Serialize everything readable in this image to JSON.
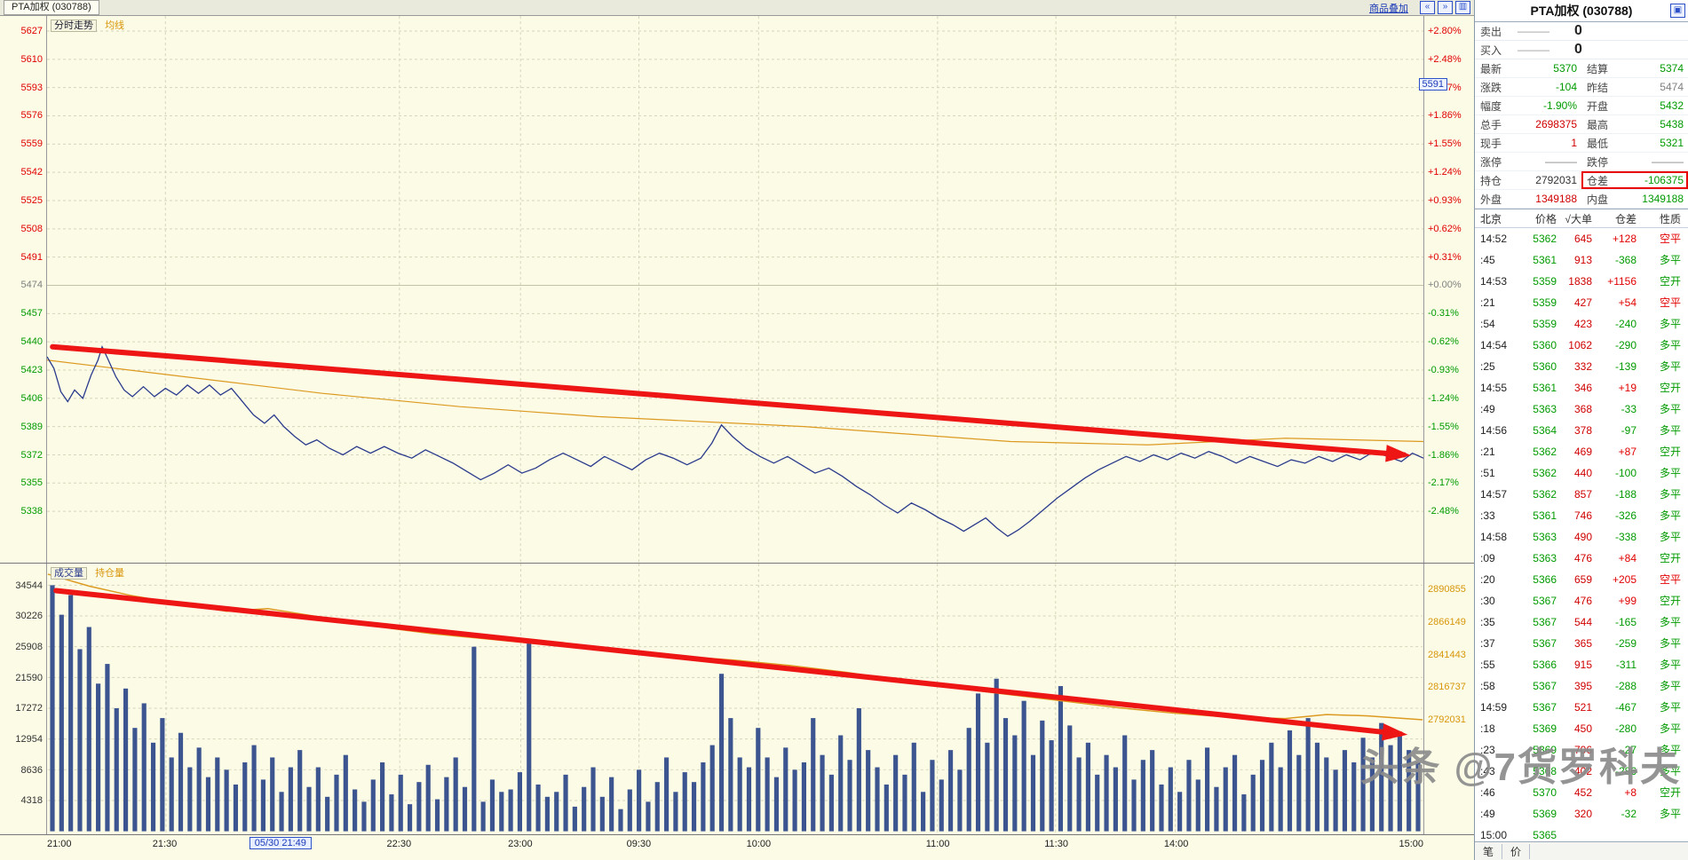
{
  "topbar": {
    "title": "PTA加权 (030788)",
    "overlay_link": "商品叠加"
  },
  "icons": {
    "zoom_out": "«",
    "zoom_in": "»",
    "layout": "▥",
    "panel_menu": "▣"
  },
  "main_chart": {
    "label_trend": "分时走势",
    "label_avg": "均线",
    "marker": "5591",
    "price_axis": [
      "5627",
      "5610",
      "5593",
      "5576",
      "5559",
      "5542",
      "5525",
      "5508",
      "5491",
      "5474",
      "5457",
      "5440",
      "5423",
      "5406",
      "5389",
      "5372",
      "5355",
      "5338"
    ],
    "pct_axis": [
      "+2.80%",
      "+2.48%",
      "+2.17%",
      "+1.86%",
      "+1.55%",
      "+1.24%",
      "+0.93%",
      "+0.62%",
      "+0.31%",
      "+0.00%",
      "-0.31%",
      "-0.62%",
      "-0.93%",
      "-1.24%",
      "-1.55%",
      "-1.86%",
      "-2.17%",
      "-2.48%"
    ]
  },
  "volume_chart": {
    "label_vol": "成交量",
    "label_oi": "持仓量",
    "vol_axis": [
      "34544",
      "30226",
      "25908",
      "21590",
      "17272",
      "12954",
      "8636",
      "4318"
    ],
    "oi_axis": [
      "2890855",
      "2866149",
      "2841443",
      "2816737",
      "2792031"
    ]
  },
  "time_axis": {
    "cursor": "05/30 21:49",
    "cursor_f": 0.17,
    "labels": [
      {
        "t": "21:00",
        "f": 0,
        "e": "left"
      },
      {
        "t": "21:30",
        "f": 0.086
      },
      {
        "t": "22:30",
        "f": 0.256
      },
      {
        "t": "23:00",
        "f": 0.344
      },
      {
        "t": "09:30",
        "f": 0.43
      },
      {
        "t": "10:00",
        "f": 0.517
      },
      {
        "t": "11:00",
        "f": 0.647
      },
      {
        "t": "11:30",
        "f": 0.733
      },
      {
        "t": "14:00",
        "f": 0.82
      },
      {
        "t": "15:00",
        "f": 1,
        "e": "right"
      }
    ]
  },
  "quote": {
    "title": "PTA加权 (030788)",
    "sell_label": "卖出",
    "buy_label": "买入",
    "dash": "———",
    "sell_vol": "0",
    "buy_vol": "0",
    "rows": [
      {
        "l1": "最新",
        "v1": "5370",
        "c1": "dn",
        "l2": "结算",
        "v2": "5374",
        "c2": "dn"
      },
      {
        "l1": "涨跌",
        "v1": "-104",
        "c1": "dn",
        "l2": "昨结",
        "v2": "5474",
        "c2": "gy"
      },
      {
        "l1": "幅度",
        "v1": "-1.90%",
        "c1": "dn",
        "l2": "开盘",
        "v2": "5432",
        "c2": "dn"
      },
      {
        "l1": "总手",
        "v1": "2698375",
        "c1": "rd",
        "l2": "最高",
        "v2": "5438",
        "c2": "dn"
      },
      {
        "l1": "现手",
        "v1": "1",
        "c1": "rd",
        "l2": "最低",
        "v2": "5321",
        "c2": "dn"
      },
      {
        "l1": "涨停",
        "v1": "———",
        "c1": "gy",
        "l2": "跌停",
        "v2": "———",
        "c2": "gy"
      },
      {
        "l1": "持仓",
        "v1": "2792031",
        "c1": "bk",
        "l2": "仓差",
        "v2": "-106375",
        "c2": "dn",
        "box2": true
      },
      {
        "l1": "外盘",
        "v1": "1349188",
        "c1": "rd",
        "l2": "内盘",
        "v2": "1349188",
        "c2": "dn"
      }
    ]
  },
  "ticks": {
    "headers": [
      "北京",
      "价格",
      "√大单",
      "仓差",
      "性质"
    ],
    "rows": [
      [
        "14:52",
        "5362",
        "645",
        "+128",
        "空平"
      ],
      [
        ":45",
        "5361",
        "913",
        "-368",
        "多平"
      ],
      [
        "14:53",
        "5359",
        "1838",
        "+1156",
        "空开"
      ],
      [
        ":21",
        "5359",
        "427",
        "+54",
        "空平"
      ],
      [
        ":54",
        "5359",
        "423",
        "-240",
        "多平"
      ],
      [
        "14:54",
        "5360",
        "1062",
        "-290",
        "多平"
      ],
      [
        ":25",
        "5360",
        "332",
        "-139",
        "多平"
      ],
      [
        "14:55",
        "5361",
        "346",
        "+19",
        "空开"
      ],
      [
        ":49",
        "5363",
        "368",
        "-33",
        "多平"
      ],
      [
        "14:56",
        "5364",
        "378",
        "-97",
        "多平"
      ],
      [
        ":21",
        "5362",
        "469",
        "+87",
        "空开"
      ],
      [
        ":51",
        "5362",
        "440",
        "-100",
        "多平"
      ],
      [
        "14:57",
        "5362",
        "857",
        "-188",
        "多平"
      ],
      [
        ":33",
        "5361",
        "746",
        "-326",
        "多平"
      ],
      [
        "14:58",
        "5363",
        "490",
        "-338",
        "多平"
      ],
      [
        ":09",
        "5363",
        "476",
        "+84",
        "空开"
      ],
      [
        ":20",
        "5366",
        "659",
        "+205",
        "空平"
      ],
      [
        ":30",
        "5367",
        "476",
        "+99",
        "空开"
      ],
      [
        ":35",
        "5367",
        "544",
        "-165",
        "多平"
      ],
      [
        ":37",
        "5367",
        "365",
        "-259",
        "多平"
      ],
      [
        ":55",
        "5366",
        "915",
        "-311",
        "多平"
      ],
      [
        ":58",
        "5367",
        "395",
        "-288",
        "多平"
      ],
      [
        "14:59",
        "5367",
        "521",
        "-467",
        "多平"
      ],
      [
        ":18",
        "5369",
        "450",
        "-280",
        "多平"
      ],
      [
        ":23",
        "5369",
        "706",
        "-27",
        "多平"
      ],
      [
        ":43",
        "5368",
        "402",
        "-286",
        "多平"
      ],
      [
        ":46",
        "5370",
        "452",
        "+8",
        "空开"
      ],
      [
        ":49",
        "5369",
        "320",
        "-32",
        "多平"
      ],
      [
        "15:00",
        "5365",
        "",
        "",
        ""
      ]
    ]
  },
  "bottom_tabs": [
    "笔",
    "价"
  ],
  "watermark": "头条 @7货罗科夫",
  "colors": {
    "up": "#e10000",
    "down": "#009a00",
    "price_line": "#2a3a8c",
    "avg_line": "#dd9a20",
    "volume_bar": "#3c5590",
    "arrow": "#ee1515",
    "chart_bg": "#fbfbe6",
    "accent_blue": "#2b50c8"
  },
  "chart_data": {
    "type": "line",
    "prev_settle": 5474,
    "price_scale": {
      "pmax": 5636,
      "pmin": 5307
    },
    "vol_scale": {
      "base": 0.99,
      "span": 0.91,
      "vmax": 34544
    },
    "oi_scale": {
      "omax": 2910000,
      "omin": 2705800
    },
    "price_series": [
      [
        0,
        5431
      ],
      [
        0.005,
        5424
      ],
      [
        0.01,
        5410
      ],
      [
        0.015,
        5404
      ],
      [
        0.02,
        5411
      ],
      [
        0.026,
        5406
      ],
      [
        0.032,
        5420
      ],
      [
        0.037,
        5429
      ],
      [
        0.04,
        5437
      ],
      [
        0.044,
        5430
      ],
      [
        0.05,
        5419
      ],
      [
        0.056,
        5411
      ],
      [
        0.062,
        5407
      ],
      [
        0.07,
        5413
      ],
      [
        0.078,
        5407
      ],
      [
        0.086,
        5412
      ],
      [
        0.094,
        5408
      ],
      [
        0.102,
        5414
      ],
      [
        0.11,
        5409
      ],
      [
        0.118,
        5414
      ],
      [
        0.126,
        5408
      ],
      [
        0.134,
        5412
      ],
      [
        0.142,
        5404
      ],
      [
        0.15,
        5396
      ],
      [
        0.158,
        5391
      ],
      [
        0.165,
        5396
      ],
      [
        0.172,
        5389
      ],
      [
        0.18,
        5383
      ],
      [
        0.188,
        5378
      ],
      [
        0.196,
        5381
      ],
      [
        0.205,
        5376
      ],
      [
        0.215,
        5372
      ],
      [
        0.225,
        5377
      ],
      [
        0.235,
        5373
      ],
      [
        0.245,
        5377
      ],
      [
        0.255,
        5373
      ],
      [
        0.265,
        5370
      ],
      [
        0.275,
        5375
      ],
      [
        0.285,
        5371
      ],
      [
        0.295,
        5367
      ],
      [
        0.305,
        5362
      ],
      [
        0.315,
        5357
      ],
      [
        0.325,
        5361
      ],
      [
        0.335,
        5366
      ],
      [
        0.345,
        5361
      ],
      [
        0.355,
        5364
      ],
      [
        0.365,
        5369
      ],
      [
        0.375,
        5373
      ],
      [
        0.385,
        5369
      ],
      [
        0.395,
        5365
      ],
      [
        0.405,
        5371
      ],
      [
        0.415,
        5367
      ],
      [
        0.425,
        5363
      ],
      [
        0.435,
        5369
      ],
      [
        0.445,
        5373
      ],
      [
        0.455,
        5370
      ],
      [
        0.465,
        5366
      ],
      [
        0.475,
        5370
      ],
      [
        0.483,
        5379
      ],
      [
        0.49,
        5390
      ],
      [
        0.498,
        5383
      ],
      [
        0.508,
        5376
      ],
      [
        0.518,
        5371
      ],
      [
        0.528,
        5367
      ],
      [
        0.538,
        5371
      ],
      [
        0.548,
        5366
      ],
      [
        0.558,
        5361
      ],
      [
        0.568,
        5364
      ],
      [
        0.578,
        5359
      ],
      [
        0.588,
        5353
      ],
      [
        0.598,
        5348
      ],
      [
        0.608,
        5342
      ],
      [
        0.618,
        5337
      ],
      [
        0.628,
        5343
      ],
      [
        0.638,
        5339
      ],
      [
        0.648,
        5334
      ],
      [
        0.658,
        5330
      ],
      [
        0.666,
        5326
      ],
      [
        0.674,
        5330
      ],
      [
        0.682,
        5334
      ],
      [
        0.69,
        5328
      ],
      [
        0.698,
        5323
      ],
      [
        0.706,
        5327
      ],
      [
        0.714,
        5332
      ],
      [
        0.724,
        5339
      ],
      [
        0.734,
        5346
      ],
      [
        0.744,
        5352
      ],
      [
        0.754,
        5358
      ],
      [
        0.764,
        5363
      ],
      [
        0.774,
        5367
      ],
      [
        0.784,
        5371
      ],
      [
        0.794,
        5368
      ],
      [
        0.804,
        5372
      ],
      [
        0.814,
        5369
      ],
      [
        0.824,
        5373
      ],
      [
        0.834,
        5370
      ],
      [
        0.844,
        5374
      ],
      [
        0.854,
        5371
      ],
      [
        0.864,
        5367
      ],
      [
        0.874,
        5371
      ],
      [
        0.884,
        5368
      ],
      [
        0.894,
        5365
      ],
      [
        0.904,
        5369
      ],
      [
        0.914,
        5367
      ],
      [
        0.924,
        5371
      ],
      [
        0.934,
        5368
      ],
      [
        0.944,
        5372
      ],
      [
        0.954,
        5369
      ],
      [
        0.964,
        5374
      ],
      [
        0.974,
        5371
      ],
      [
        0.984,
        5368
      ],
      [
        0.992,
        5373
      ],
      [
        1,
        5370
      ]
    ],
    "avg_series": [
      [
        0,
        5429
      ],
      [
        0.05,
        5424
      ],
      [
        0.1,
        5419
      ],
      [
        0.15,
        5414
      ],
      [
        0.2,
        5409
      ],
      [
        0.25,
        5405
      ],
      [
        0.3,
        5401
      ],
      [
        0.35,
        5398
      ],
      [
        0.4,
        5395
      ],
      [
        0.45,
        5393
      ],
      [
        0.5,
        5391
      ],
      [
        0.55,
        5389
      ],
      [
        0.6,
        5386
      ],
      [
        0.65,
        5383
      ],
      [
        0.7,
        5380
      ],
      [
        0.75,
        5379
      ],
      [
        0.8,
        5378
      ],
      [
        0.85,
        5380
      ],
      [
        0.9,
        5382
      ],
      [
        0.95,
        5381
      ],
      [
        1,
        5380
      ]
    ],
    "volume_bars": [
      100,
      88,
      96,
      74,
      83,
      60,
      68,
      50,
      58,
      42,
      52,
      36,
      46,
      30,
      40,
      26,
      34,
      22,
      30,
      25,
      19,
      28,
      35,
      21,
      30,
      16,
      26,
      33,
      18,
      26,
      14,
      23,
      31,
      17,
      12,
      21,
      28,
      15,
      23,
      11,
      20,
      27,
      13,
      22,
      30,
      18,
      75,
      12,
      21,
      16,
      17,
      24,
      78,
      19,
      14,
      16,
      23,
      10,
      18,
      26,
      14,
      22,
      9,
      17,
      25,
      12,
      20,
      30,
      16,
      24,
      20,
      28,
      35,
      64,
      46,
      30,
      26,
      42,
      30,
      22,
      34,
      25,
      28,
      46,
      31,
      23,
      39,
      29,
      50,
      33,
      26,
      19,
      31,
      23,
      36,
      16,
      29,
      21,
      33,
      25,
      42,
      56,
      36,
      62,
      46,
      39,
      53,
      31,
      45,
      37,
      59,
      43,
      30,
      36,
      23,
      31,
      26,
      39,
      21,
      29,
      33,
      19,
      26,
      16,
      29,
      21,
      34,
      18,
      26,
      31,
      15,
      23,
      29,
      36,
      26,
      41,
      31,
      46,
      36,
      30,
      25,
      33,
      28,
      38,
      30,
      44,
      35,
      40,
      33,
      28
    ],
    "oi_series": [
      [
        0,
        2902000
      ],
      [
        0.03,
        2893000
      ],
      [
        0.06,
        2886000
      ],
      [
        0.1,
        2879000
      ],
      [
        0.13,
        2874000
      ],
      [
        0.16,
        2876000
      ],
      [
        0.19,
        2871000
      ],
      [
        0.22,
        2866000
      ],
      [
        0.25,
        2861000
      ],
      [
        0.28,
        2857000
      ],
      [
        0.31,
        2854000
      ],
      [
        0.34,
        2851000
      ],
      [
        0.37,
        2848000
      ],
      [
        0.4,
        2845000
      ],
      [
        0.43,
        2842000
      ],
      [
        0.46,
        2840000
      ],
      [
        0.5,
        2837000
      ],
      [
        0.54,
        2833000
      ],
      [
        0.58,
        2828000
      ],
      [
        0.62,
        2822000
      ],
      [
        0.66,
        2816000
      ],
      [
        0.7,
        2811000
      ],
      [
        0.74,
        2806000
      ],
      [
        0.78,
        2801000
      ],
      [
        0.82,
        2797000
      ],
      [
        0.86,
        2794000
      ],
      [
        0.9,
        2793000
      ],
      [
        0.93,
        2796000
      ],
      [
        0.96,
        2795000
      ],
      [
        1,
        2792031
      ]
    ],
    "annotations": {
      "main_arrow": {
        "x1": 0.004,
        "p1": 5437,
        "x2": 0.995,
        "p2": 5372
      },
      "vol_arrow": {
        "x1": 0.006,
        "f1": 0.1,
        "x2": 0.993,
        "f2": 0.63
      }
    }
  }
}
